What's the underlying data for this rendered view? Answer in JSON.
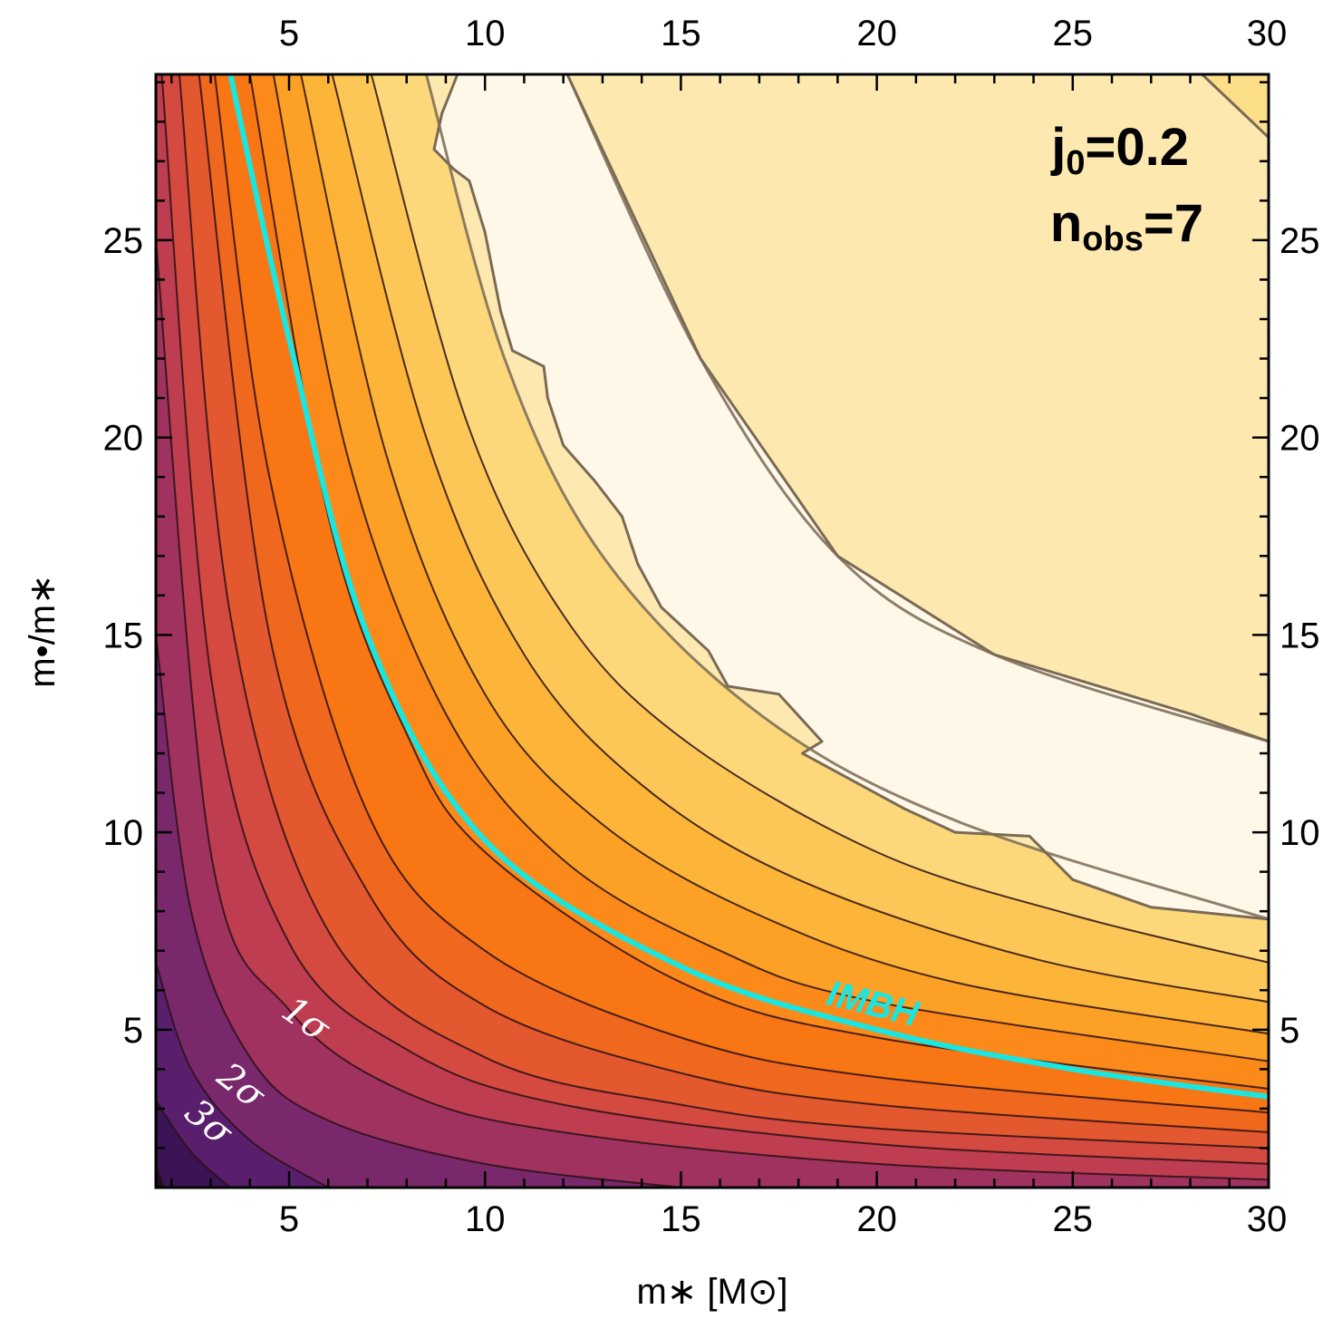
{
  "chart_data": {
    "type": "contour",
    "xlabel": "m∗ [M⊙]",
    "ylabel": "m•/m∗",
    "xlim": [
      1.6,
      30
    ],
    "ylim": [
      1,
      29.2
    ],
    "x_ticks": [
      "5",
      "10",
      "15",
      "20",
      "25",
      "30"
    ],
    "y_ticks": [
      "5",
      "10",
      "15",
      "20",
      "25"
    ],
    "y_ticks_right": [
      "5",
      "10",
      "15",
      "20",
      "25"
    ],
    "annotation": {
      "j_label": "j",
      "j_sub": "0",
      "j_value": "=0.2",
      "n_label": "n",
      "n_sub": "obs",
      "n_value": "=7"
    },
    "sigma_labels": [
      "1σ",
      "2σ",
      "3σ"
    ],
    "imbh_label": "IMBH",
    "imbh_curve": {
      "color": "#19e6e0",
      "points": [
        [
          3.5,
          29.2
        ],
        [
          5,
          22.5
        ],
        [
          7,
          15.0
        ],
        [
          10,
          9.8
        ],
        [
          15,
          6.6
        ],
        [
          20,
          5.0
        ],
        [
          25,
          4.0
        ],
        [
          30,
          3.3
        ]
      ]
    },
    "contour_bands": [
      {
        "color": "#200a25",
        "points": [
          [
            1.6,
            1.6
          ],
          [
            1.8,
            1.0
          ]
        ]
      },
      {
        "color": "#3a1454",
        "points": [
          [
            1.6,
            3.2
          ],
          [
            2.5,
            1.9
          ],
          [
            3.5,
            1.0
          ]
        ]
      },
      {
        "color": "#5a1f6c",
        "points": [
          [
            1.6,
            6.7
          ],
          [
            2.5,
            4.0
          ],
          [
            4,
            2.2
          ],
          [
            6,
            1.0
          ]
        ]
      },
      {
        "color": "#7a286c",
        "points": [
          [
            1.6,
            15.0
          ],
          [
            2.5,
            8.0
          ],
          [
            4,
            4.3
          ],
          [
            6,
            2.7
          ],
          [
            10,
            1.6
          ],
          [
            15,
            1.0
          ]
        ]
      },
      {
        "color": "#a0325f",
        "points": [
          [
            1.6,
            25.0
          ],
          [
            3,
            9.5
          ],
          [
            5,
            5.5
          ],
          [
            8,
            3.4
          ],
          [
            12,
            2.4
          ],
          [
            20,
            1.6
          ],
          [
            30,
            1.2
          ]
        ]
      },
      {
        "color": "#be3d50",
        "points": [
          [
            1.75,
            29.2
          ],
          [
            3,
            14.0
          ],
          [
            5,
            7.2
          ],
          [
            8,
            4.5
          ],
          [
            12,
            3.1
          ],
          [
            20,
            2.1
          ],
          [
            30,
            1.6
          ]
        ]
      },
      {
        "color": "#d44a40",
        "points": [
          [
            2.2,
            29.2
          ],
          [
            3.5,
            15.5
          ],
          [
            6,
            7.5
          ],
          [
            10,
            4.3
          ],
          [
            15,
            3.1
          ],
          [
            20,
            2.5
          ],
          [
            30,
            2.0
          ]
        ]
      },
      {
        "color": "#e3582e",
        "points": [
          [
            2.7,
            29.2
          ],
          [
            4.5,
            15.0
          ],
          [
            7,
            8.5
          ],
          [
            10,
            5.6
          ],
          [
            15,
            3.9
          ],
          [
            20,
            3.1
          ],
          [
            30,
            2.4
          ]
        ]
      },
      {
        "color": "#f0671e",
        "points": [
          [
            3.1,
            29.2
          ],
          [
            4.5,
            19.0
          ],
          [
            7,
            10.5
          ],
          [
            10,
            7.0
          ],
          [
            15,
            4.8
          ],
          [
            20,
            3.8
          ],
          [
            30,
            2.9
          ]
        ]
      },
      {
        "color": "#f87614",
        "points": [
          [
            4.0,
            29.2
          ],
          [
            6,
            18.0
          ],
          [
            8,
            12.5
          ],
          [
            10,
            9.5
          ],
          [
            15,
            6.2
          ],
          [
            20,
            4.8
          ],
          [
            30,
            3.5
          ]
        ]
      },
      {
        "color": "#fb8a1a",
        "points": [
          [
            4.6,
            29.2
          ],
          [
            6.5,
            19.5
          ],
          [
            9,
            13.0
          ],
          [
            12,
            9.3
          ],
          [
            16,
            7.0
          ],
          [
            20,
            5.7
          ],
          [
            30,
            4.2
          ]
        ]
      },
      {
        "color": "#fca125",
        "points": [
          [
            5.3,
            29.2
          ],
          [
            7.5,
            19.5
          ],
          [
            10,
            13.5
          ],
          [
            13,
            10.2
          ],
          [
            17,
            7.9
          ],
          [
            22,
            6.2
          ],
          [
            30,
            4.9
          ]
        ]
      },
      {
        "color": "#fcb538",
        "points": [
          [
            6.1,
            29.2
          ],
          [
            8.5,
            20.0
          ],
          [
            11,
            14.5
          ],
          [
            14,
            11.2
          ],
          [
            18,
            8.8
          ],
          [
            24,
            6.8
          ],
          [
            30,
            5.7
          ]
        ]
      },
      {
        "color": "#fdc757",
        "points": [
          [
            7.1,
            29.2
          ],
          [
            9.5,
            20.5
          ],
          [
            12,
            15.5
          ],
          [
            15,
            12.4
          ],
          [
            20,
            9.5
          ],
          [
            25,
            7.9
          ],
          [
            30,
            6.7
          ]
        ]
      },
      {
        "color": "#fdd87a",
        "points": [
          [
            8.5,
            29.2
          ],
          [
            10.5,
            22.0
          ],
          [
            13,
            17.0
          ],
          [
            17,
            13.0
          ],
          [
            22,
            10.3
          ],
          [
            30,
            7.8
          ]
        ]
      },
      {
        "color": "#fde9b0",
        "points": [
          [
            12.1,
            29.2
          ],
          [
            15.5,
            22.0
          ],
          [
            19,
            17.0
          ],
          [
            23,
            14.5
          ],
          [
            30,
            12.3
          ]
        ]
      },
      {
        "color": "#fddf8a",
        "points": [
          [
            28.3,
            29.2
          ],
          [
            30,
            27.6
          ]
        ]
      }
    ],
    "white_region": {
      "color": "#fff8e9",
      "points": [
        [
          9.3,
          29.2
        ],
        [
          8.9,
          28.2
        ],
        [
          8.7,
          27.3
        ],
        [
          9.2,
          26.8
        ],
        [
          9.6,
          26.5
        ],
        [
          10.0,
          25.2
        ],
        [
          10.4,
          23.2
        ],
        [
          10.7,
          22.2
        ],
        [
          11.5,
          21.8
        ],
        [
          11.6,
          21.0
        ],
        [
          12.0,
          19.8
        ],
        [
          12.8,
          18.9
        ],
        [
          13.5,
          18.0
        ],
        [
          13.9,
          16.8
        ],
        [
          14.5,
          15.7
        ],
        [
          15.7,
          14.6
        ],
        [
          16.2,
          13.7
        ],
        [
          17.5,
          13.5
        ],
        [
          18.6,
          12.3
        ],
        [
          18.1,
          12.0
        ],
        [
          20.7,
          10.6
        ],
        [
          22.0,
          10.0
        ],
        [
          23.9,
          9.9
        ],
        [
          25.0,
          8.8
        ],
        [
          27.0,
          8.1
        ],
        [
          30,
          7.8
        ],
        [
          30,
          12.3
        ],
        [
          28,
          13.0
        ],
        [
          23,
          14.5
        ],
        [
          19,
          17.0
        ],
        [
          15.5,
          22.0
        ],
        [
          12.1,
          29.2
        ]
      ]
    },
    "grid": false,
    "legend": "none"
  }
}
